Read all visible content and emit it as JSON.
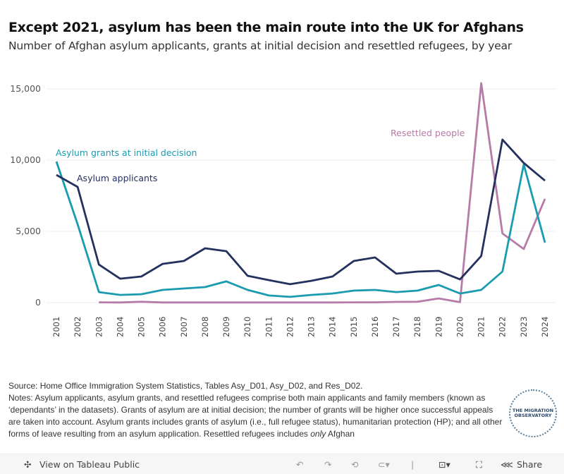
{
  "title": "Except 2021, asylum has been the main route into the UK for Afghans",
  "subtitle": "Number of Afghan asylum applicants, grants at initial decision and resettled refugees, by year",
  "chart_data": {
    "type": "line",
    "x": [
      2001,
      2002,
      2003,
      2004,
      2005,
      2006,
      2007,
      2008,
      2009,
      2010,
      2011,
      2012,
      2013,
      2014,
      2015,
      2016,
      2017,
      2018,
      2019,
      2020,
      2021,
      2022,
      2023,
      2024
    ],
    "ylim": [
      0,
      15000
    ],
    "yticks": [
      0,
      5000,
      10000,
      15000
    ],
    "ytick_labels": [
      "0",
      "5,000",
      "10,000",
      "15,000"
    ],
    "grid": true,
    "series": [
      {
        "name": "Asylum applicants",
        "color": "#24305e",
        "values": [
          8960,
          8120,
          2670,
          1680,
          1830,
          2720,
          2920,
          3810,
          3610,
          1880,
          1580,
          1290,
          1530,
          1830,
          2920,
          3170,
          2030,
          2180,
          2230,
          1630,
          3270,
          11440,
          9800,
          8560
        ]
      },
      {
        "name": "Asylum grants at initial decision",
        "color": "#1a9bb0",
        "values": [
          9900,
          5500,
          740,
          540,
          590,
          890,
          990,
          1090,
          1490,
          890,
          500,
          400,
          540,
          640,
          840,
          890,
          740,
          840,
          1240,
          640,
          890,
          2180,
          9700,
          4210
        ]
      },
      {
        "name": "Resettled people",
        "color": "#b77ba8",
        "values": [
          null,
          null,
          20,
          10,
          60,
          10,
          10,
          10,
          10,
          10,
          10,
          10,
          10,
          10,
          20,
          20,
          50,
          60,
          290,
          30,
          15400,
          4850,
          3760,
          7280
        ]
      }
    ]
  },
  "notes": {
    "source": "Source: Home Office Immigration System Statistics, Tables Asy_D01, Asy_D02, and Res_D02.",
    "text": "Notes: Asylum applicants, asylum grants, and resettled refugees comprise both main applicants and family members (known as ‘dependants’ in the datasets). Grants of asylum are at initial decision; the number of grants will be higher once successful appeals are taken into account. Asylum grants includes grants of asylum (i.e., full refugee status), humanitarian protection (HP); and all other forms of leave resulting from an asylum application. Resettled refugees includes",
    "only": "only",
    "tail": "Afghan"
  },
  "logo": "THE MIGRATION OBSERVATORY",
  "footer": {
    "view_label": "View on Tableau Public",
    "share_label": "Share"
  }
}
